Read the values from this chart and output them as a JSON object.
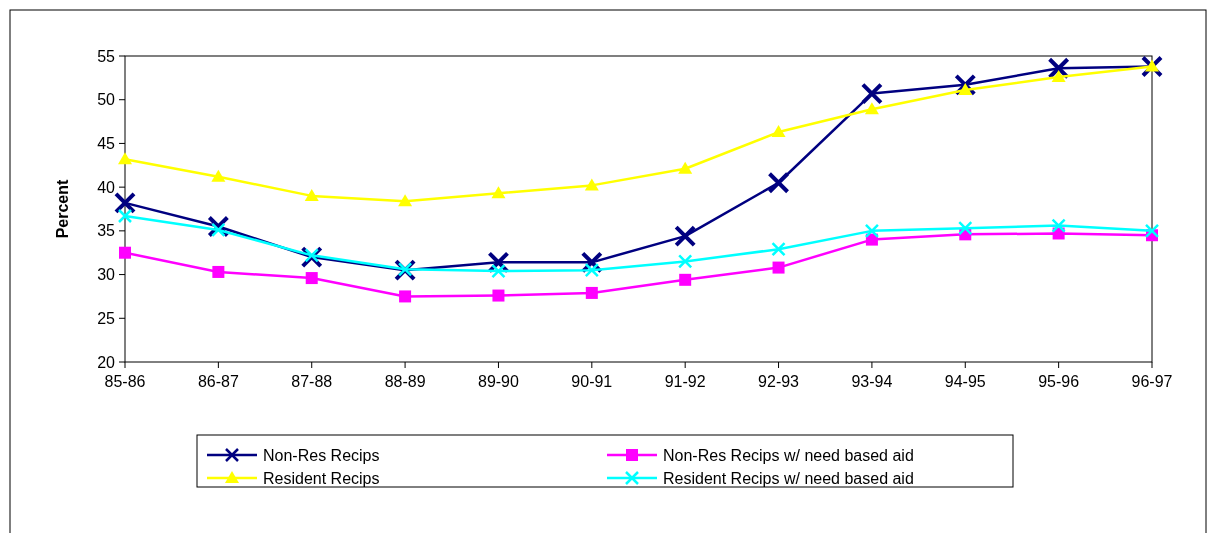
{
  "chart_data": {
    "type": "line",
    "ylabel": "Percent",
    "categories": [
      "85-86",
      "86-87",
      "87-88",
      "88-89",
      "89-90",
      "90-91",
      "91-92",
      "92-93",
      "93-94",
      "94-95",
      "95-96",
      "96-97"
    ],
    "ylim": [
      20,
      55
    ],
    "yticks": [
      20,
      25,
      30,
      35,
      40,
      45,
      50,
      55
    ],
    "grid": false,
    "legend": "bottom",
    "series": [
      {
        "name": "Non-Res Recips",
        "color": "#000080",
        "marker": "cross",
        "values": [
          38.2,
          35.5,
          32,
          30.5,
          31.4,
          31.4,
          34.4,
          40.5,
          50.7,
          51.7,
          53.6,
          53.8
        ]
      },
      {
        "name": "Resident Recips",
        "color": "#ffff00",
        "marker": "triangle",
        "values": [
          43.2,
          41.2,
          39,
          38.4,
          39.3,
          40.2,
          42.1,
          46.3,
          48.9,
          51.1,
          52.6,
          53.8
        ]
      },
      {
        "name": "Non-Res Recips  w/ need based aid",
        "color": "#ff00ff",
        "marker": "square",
        "values": [
          32.5,
          30.3,
          29.6,
          27.5,
          27.6,
          27.9,
          29.4,
          30.8,
          34,
          34.6,
          34.7,
          34.5
        ]
      },
      {
        "name": "Resident Recips w/ need based aid",
        "color": "#00ffff",
        "marker": "cross",
        "values": [
          36.7,
          35.1,
          32.2,
          30.6,
          30.4,
          30.5,
          31.5,
          32.9,
          35,
          35.3,
          35.6,
          35
        ]
      }
    ]
  }
}
